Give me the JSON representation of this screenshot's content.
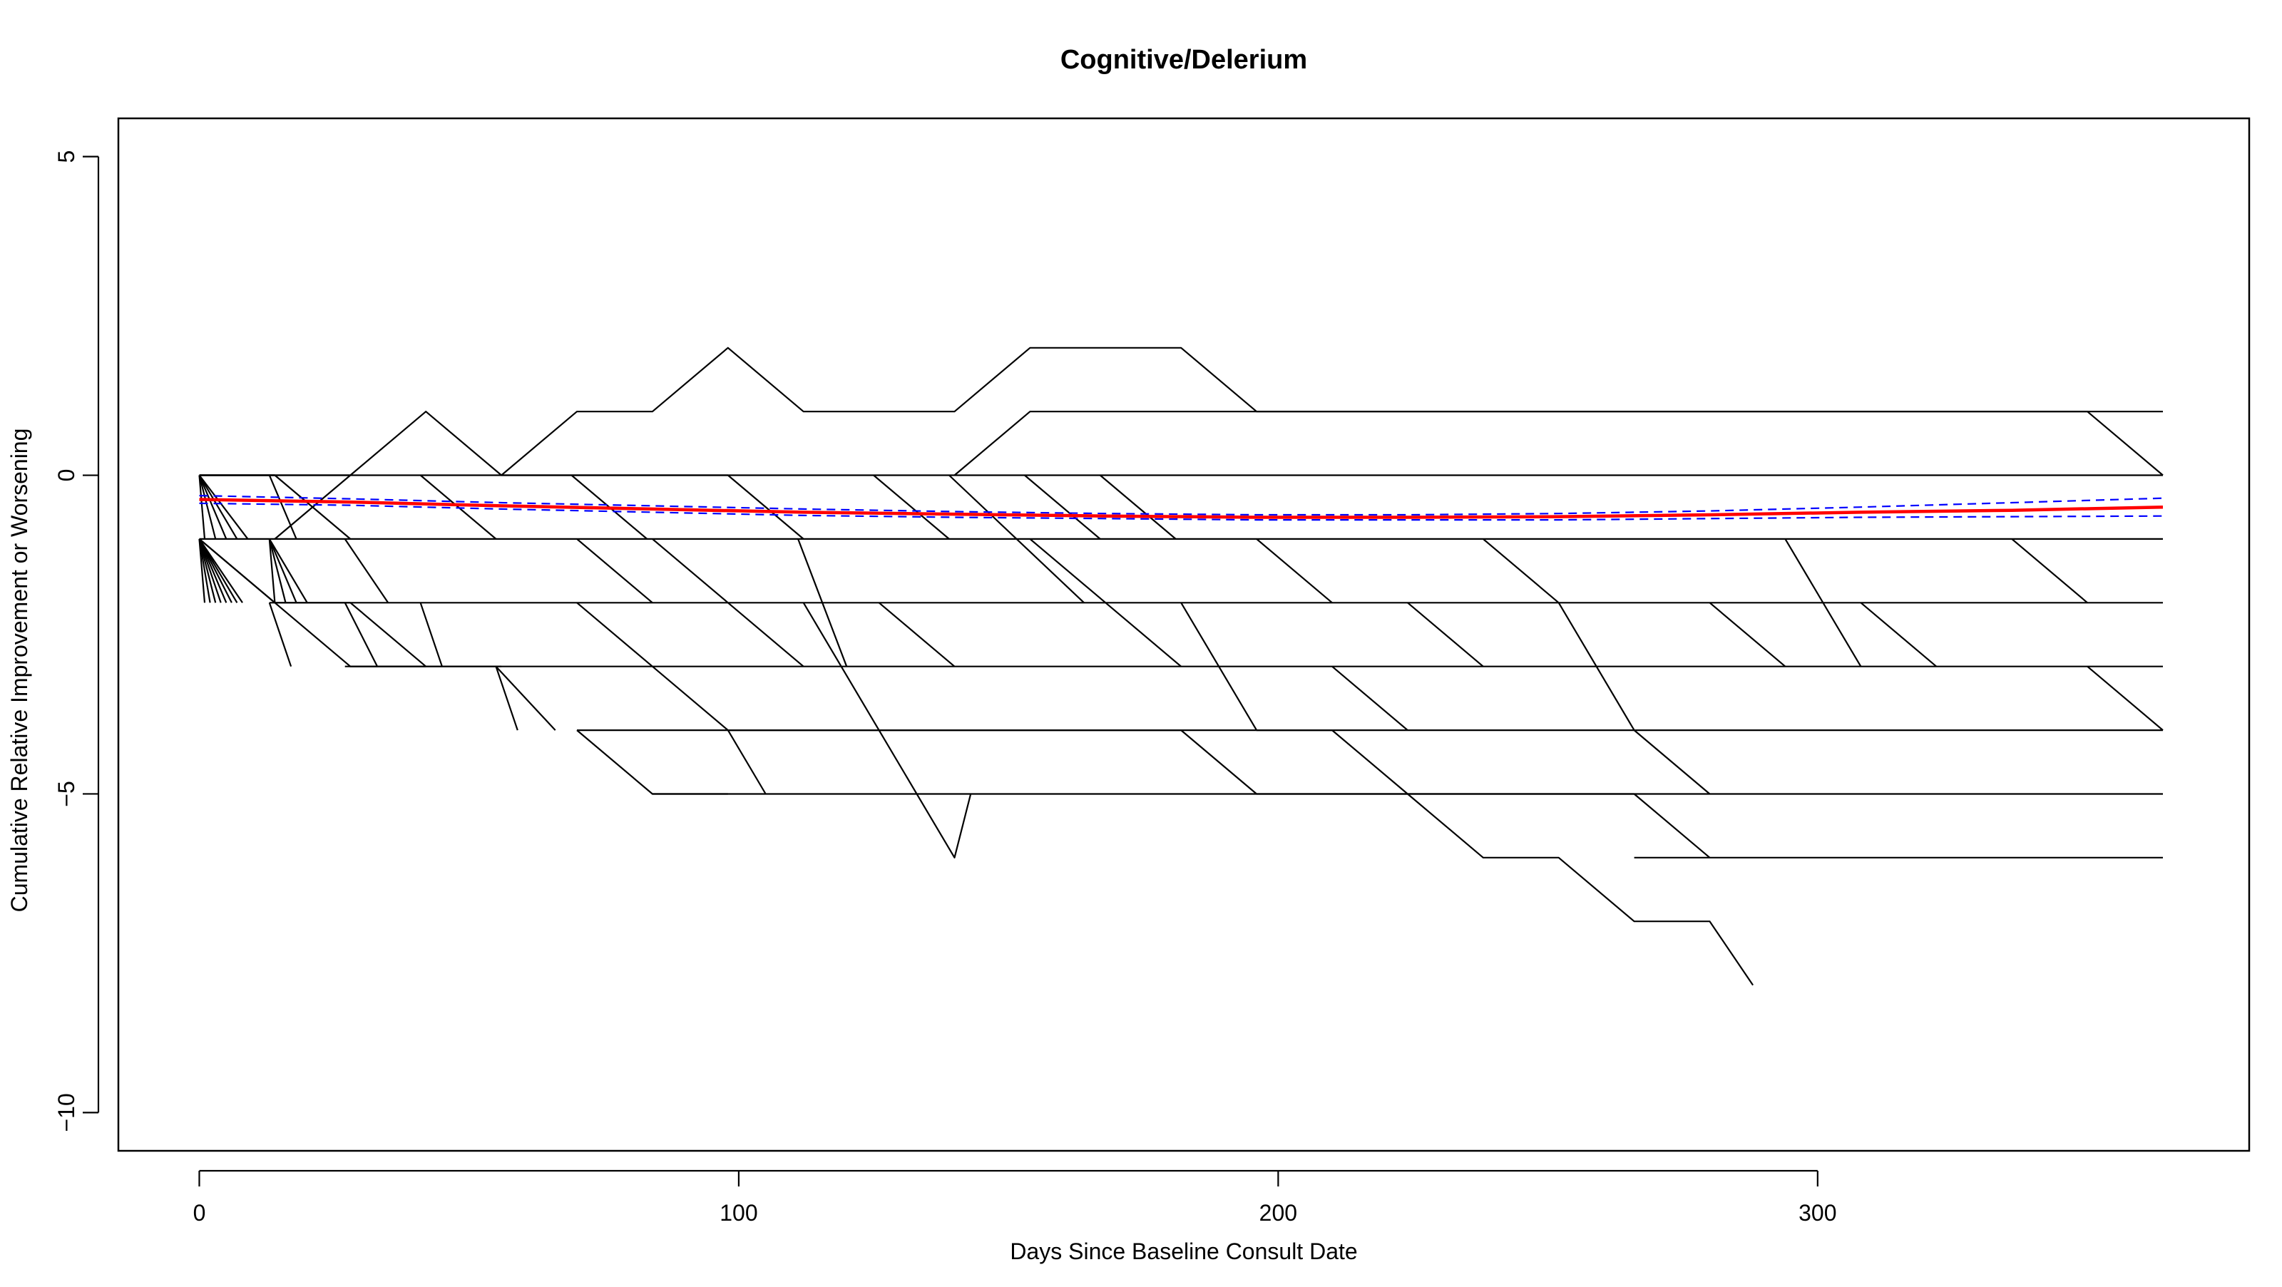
{
  "chart_data": {
    "type": "line",
    "title": "Cognitive/Delerium",
    "xlabel": "Days Since Baseline Consult Date",
    "ylabel": "Cumulative Relative Improvement or Worsening",
    "xlim": [
      -15,
      380
    ],
    "ylim": [
      -10.6,
      5.6
    ],
    "xticks": [
      0,
      100,
      200,
      300
    ],
    "yticks": [
      -10,
      -5,
      0,
      5
    ],
    "grid": false,
    "legend": "none",
    "colors": {
      "individual": "#000000",
      "mean": "#ff0000",
      "ci": "#0000ff"
    },
    "series": [
      {
        "x": [
          0,
          14
        ],
        "y": [
          0,
          0
        ]
      },
      {
        "x": [
          0,
          14,
          28
        ],
        "y": [
          0,
          0,
          -1
        ]
      },
      {
        "x": [
          0,
          14,
          28,
          42
        ],
        "y": [
          -1,
          -2,
          -2,
          -3
        ]
      },
      {
        "x": [
          0,
          14,
          28,
          42,
          56
        ],
        "y": [
          -1,
          -2,
          -3,
          -3,
          -3
        ]
      },
      {
        "x": [
          0,
          1
        ],
        "y": [
          -1,
          -2
        ]
      },
      {
        "x": [
          0,
          2
        ],
        "y": [
          -1,
          -2
        ]
      },
      {
        "x": [
          0,
          3
        ],
        "y": [
          -1,
          -2
        ]
      },
      {
        "x": [
          0,
          4
        ],
        "y": [
          -1,
          -2
        ]
      },
      {
        "x": [
          0,
          5
        ],
        "y": [
          -1,
          -2
        ]
      },
      {
        "x": [
          0,
          6
        ],
        "y": [
          -1,
          -2
        ]
      },
      {
        "x": [
          0,
          7
        ],
        "y": [
          -1,
          -2
        ]
      },
      {
        "x": [
          0,
          8
        ],
        "y": [
          -1,
          -2
        ]
      },
      {
        "x": [
          0,
          1
        ],
        "y": [
          0,
          -1
        ]
      },
      {
        "x": [
          0,
          3
        ],
        "y": [
          0,
          -1
        ]
      },
      {
        "x": [
          0,
          5
        ],
        "y": [
          0,
          -1
        ]
      },
      {
        "x": [
          0,
          7
        ],
        "y": [
          0,
          -1
        ]
      },
      {
        "x": [
          0,
          9
        ],
        "y": [
          0,
          -1
        ]
      },
      {
        "x": [
          13,
          14
        ],
        "y": [
          -1,
          -2
        ]
      },
      {
        "x": [
          13,
          16
        ],
        "y": [
          -1,
          -2
        ]
      },
      {
        "x": [
          13,
          18
        ],
        "y": [
          -1,
          -2
        ]
      },
      {
        "x": [
          13,
          20
        ],
        "y": [
          -1,
          -2
        ]
      },
      {
        "x": [
          13,
          18
        ],
        "y": [
          0,
          -1
        ]
      },
      {
        "x": [
          13,
          15,
          17
        ],
        "y": [
          -2,
          -2.5,
          -3
        ]
      },
      {
        "x": [
          14,
          28
        ],
        "y": [
          -1,
          0
        ]
      },
      {
        "x": [
          0,
          14,
          28,
          42,
          56,
          70,
          84,
          98
        ],
        "y": [
          0,
          0,
          0,
          1,
          0,
          0,
          0,
          0
        ]
      },
      {
        "x": [
          27,
          35
        ],
        "y": [
          -1,
          -2
        ]
      },
      {
        "x": [
          27,
          33
        ],
        "y": [
          -2,
          -3
        ]
      },
      {
        "x": [
          28,
          42
        ],
        "y": [
          -3,
          -3
        ]
      },
      {
        "x": [
          41,
          55
        ],
        "y": [
          0,
          -1
        ]
      },
      {
        "x": [
          41,
          45
        ],
        "y": [
          -2,
          -3
        ]
      },
      {
        "x": [
          55,
          59
        ],
        "y": [
          -3,
          -4
        ]
      },
      {
        "x": [
          55,
          66
        ],
        "y": [
          -3,
          -4
        ]
      },
      {
        "x": [
          56,
          70,
          84,
          98,
          112,
          126,
          140,
          154,
          168,
          182,
          196,
          210,
          224,
          238,
          252,
          266,
          280,
          294,
          308,
          322,
          336,
          350,
          364
        ],
        "y": [
          0,
          1,
          1,
          2,
          1,
          1,
          1,
          2,
          2,
          2,
          1,
          1,
          1,
          1,
          1,
          1,
          1,
          1,
          1,
          1,
          1,
          1,
          1
        ]
      },
      {
        "x": [
          70,
          84
        ],
        "y": [
          -1,
          -2
        ]
      },
      {
        "x": [
          70,
          84
        ],
        "y": [
          -2,
          -3
        ]
      },
      {
        "x": [
          70,
          84,
          98
        ],
        "y": [
          -4,
          -5,
          -5
        ]
      },
      {
        "x": [
          69,
          83
        ],
        "y": [
          0,
          -1
        ]
      },
      {
        "x": [
          84,
          98,
          112
        ],
        "y": [
          -1,
          -2,
          -3
        ]
      },
      {
        "x": [
          84,
          98,
          105
        ],
        "y": [
          -3,
          -4,
          -5
        ]
      },
      {
        "x": [
          98,
          112,
          126,
          140,
          154,
          168,
          182,
          196,
          210,
          224,
          238,
          252,
          266
        ],
        "y": [
          -4,
          -4,
          -4,
          -4,
          -4,
          -4,
          -4,
          -5,
          -5,
          -5,
          -5,
          -5,
          -5
        ]
      },
      {
        "x": [
          98,
          112
        ],
        "y": [
          0,
          -1
        ]
      },
      {
        "x": [
          111,
          120
        ],
        "y": [
          -1,
          -3
        ]
      },
      {
        "x": [
          112,
          126,
          140,
          143
        ],
        "y": [
          -2,
          -4,
          -6,
          -5
        ]
      },
      {
        "x": [
          125,
          139
        ],
        "y": [
          0,
          -1
        ]
      },
      {
        "x": [
          126,
          140
        ],
        "y": [
          -2,
          -3
        ]
      },
      {
        "x": [
          139,
          164
        ],
        "y": [
          0,
          -2
        ]
      },
      {
        "x": [
          140,
          154,
          168,
          182,
          196,
          210,
          224,
          238,
          252,
          266,
          280,
          294,
          308,
          322,
          336,
          350,
          364
        ],
        "y": [
          0,
          1,
          1,
          1,
          1,
          1,
          1,
          1,
          1,
          1,
          1,
          1,
          1,
          1,
          1,
          1,
          0
        ]
      },
      {
        "x": [
          153,
          167
        ],
        "y": [
          0,
          -1
        ]
      },
      {
        "x": [
          154,
          168
        ],
        "y": [
          -1,
          -2
        ]
      },
      {
        "x": [
          167,
          181
        ],
        "y": [
          0,
          -1
        ]
      },
      {
        "x": [
          168,
          182
        ],
        "y": [
          -2,
          -3
        ]
      },
      {
        "x": [
          182,
          196,
          210
        ],
        "y": [
          -2,
          -4,
          -4
        ]
      },
      {
        "x": [
          196,
          210
        ],
        "y": [
          -1,
          -2
        ]
      },
      {
        "x": [
          210,
          224
        ],
        "y": [
          -3,
          -4
        ]
      },
      {
        "x": [
          210,
          224,
          238,
          252,
          266,
          280,
          288
        ],
        "y": [
          -4,
          -5,
          -6,
          -6,
          -7,
          -7,
          -8
        ]
      },
      {
        "x": [
          224,
          238
        ],
        "y": [
          -2,
          -3
        ]
      },
      {
        "x": [
          238,
          252
        ],
        "y": [
          -1,
          -2
        ]
      },
      {
        "x": [
          252,
          266,
          280
        ],
        "y": [
          -2,
          -4,
          -5
        ]
      },
      {
        "x": [
          266,
          280
        ],
        "y": [
          -5,
          -6
        ]
      },
      {
        "x": [
          280,
          294
        ],
        "y": [
          -2,
          -3
        ]
      },
      {
        "x": [
          294,
          308
        ],
        "y": [
          -1,
          -3
        ]
      },
      {
        "x": [
          308,
          322
        ],
        "y": [
          -2,
          -3
        ]
      },
      {
        "x": [
          336,
          350
        ],
        "y": [
          -1,
          -2
        ]
      },
      {
        "x": [
          350,
          364
        ],
        "y": [
          -3,
          -4
        ]
      },
      {
        "x": [
          0,
          364
        ],
        "y": [
          0,
          0
        ]
      },
      {
        "x": [
          0,
          364
        ],
        "y": [
          -1,
          -1
        ]
      },
      {
        "x": [
          13,
          364
        ],
        "y": [
          -2,
          -2
        ]
      },
      {
        "x": [
          27,
          364
        ],
        "y": [
          -3,
          -3
        ]
      },
      {
        "x": [
          70,
          364
        ],
        "y": [
          -4,
          -4
        ]
      },
      {
        "x": [
          84,
          364
        ],
        "y": [
          -5,
          -5
        ]
      },
      {
        "x": [
          266,
          364
        ],
        "y": [
          -6,
          -6
        ]
      }
    ],
    "mean_trend": {
      "name": "mean",
      "x": [
        0,
        28,
        56,
        84,
        112,
        140,
        168,
        196,
        224,
        252,
        280,
        308,
        336,
        364
      ],
      "y": [
        -0.38,
        -0.42,
        -0.48,
        -0.53,
        -0.58,
        -0.61,
        -0.64,
        -0.66,
        -0.66,
        -0.65,
        -0.62,
        -0.58,
        -0.55,
        -0.5
      ]
    },
    "ci_upper": {
      "x": [
        0,
        28,
        56,
        84,
        112,
        140,
        168,
        196,
        224,
        252,
        280,
        308,
        336,
        364
      ],
      "y": [
        -0.32,
        -0.37,
        -0.43,
        -0.48,
        -0.53,
        -0.57,
        -0.6,
        -0.62,
        -0.62,
        -0.6,
        -0.56,
        -0.5,
        -0.43,
        -0.36
      ]
    },
    "ci_lower": {
      "x": [
        0,
        28,
        56,
        84,
        112,
        140,
        168,
        196,
        224,
        252,
        280,
        308,
        336,
        364
      ],
      "y": [
        -0.44,
        -0.47,
        -0.53,
        -0.58,
        -0.63,
        -0.66,
        -0.68,
        -0.7,
        -0.7,
        -0.7,
        -0.68,
        -0.66,
        -0.65,
        -0.64
      ]
    }
  }
}
